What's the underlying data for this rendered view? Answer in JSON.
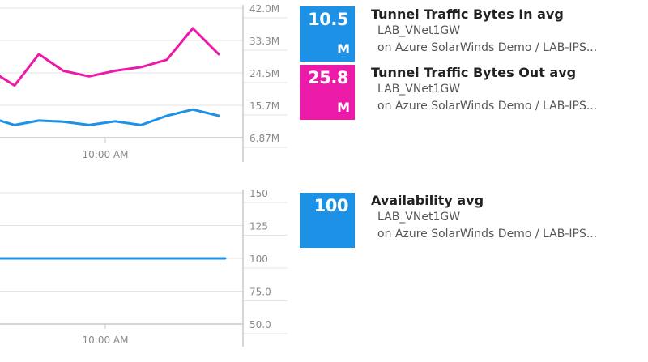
{
  "theme": {
    "in_color": "#1d91e6",
    "out_color": "#ec1aa9",
    "grid_color": "#e4e4e4",
    "axis_color": "#c8c8c8"
  },
  "chart_data": [
    {
      "type": "line",
      "x_tick_labels": [
        "10:00 AM"
      ],
      "y_ticks": [
        "42.0M",
        "33.3M",
        "24.5M",
        "15.7M",
        "6.87M"
      ],
      "ylim": [
        6.87,
        42.0
      ],
      "grid": true,
      "series": [
        {
          "name": "Tunnel Traffic Bytes Out avg",
          "color": "#ec1aa9",
          "values": [
            23.5,
            21.0,
            29.5,
            25.0,
            23.5,
            25.0,
            26.0,
            28.0,
            36.5,
            29.5
          ]
        },
        {
          "name": "Tunnel Traffic Bytes In avg",
          "color": "#1d91e6",
          "values": [
            11.5,
            10.3,
            11.5,
            11.2,
            10.3,
            11.3,
            10.3,
            12.8,
            14.5,
            12.8
          ]
        }
      ]
    },
    {
      "type": "line",
      "x_tick_labels": [
        "10:00 AM"
      ],
      "y_ticks": [
        "150",
        "125",
        "100",
        "75.0",
        "50.0"
      ],
      "ylim": [
        50,
        150
      ],
      "grid": true,
      "series": [
        {
          "name": "Availability avg",
          "color": "#1d91e6",
          "values": [
            100,
            100,
            100,
            100,
            100,
            100,
            100,
            100,
            100,
            100
          ]
        }
      ]
    }
  ],
  "metrics": [
    {
      "value": "10.5",
      "unit": "M",
      "title": "Tunnel Traffic Bytes In avg",
      "node": "LAB_VNet1GW",
      "location": "on Azure SolarWinds Demo / LAB-IPS...",
      "color": "#1d91e6"
    },
    {
      "value": "25.8",
      "unit": "M",
      "title": "Tunnel Traffic Bytes Out avg",
      "node": "LAB_VNet1GW",
      "location": "on Azure SolarWinds Demo / LAB-IPS...",
      "color": "#ec1aa9"
    },
    {
      "value": "100",
      "unit": "",
      "title": "Availability avg",
      "node": "LAB_VNet1GW",
      "location": "on Azure SolarWinds Demo / LAB-IPS...",
      "color": "#1d91e6"
    }
  ]
}
